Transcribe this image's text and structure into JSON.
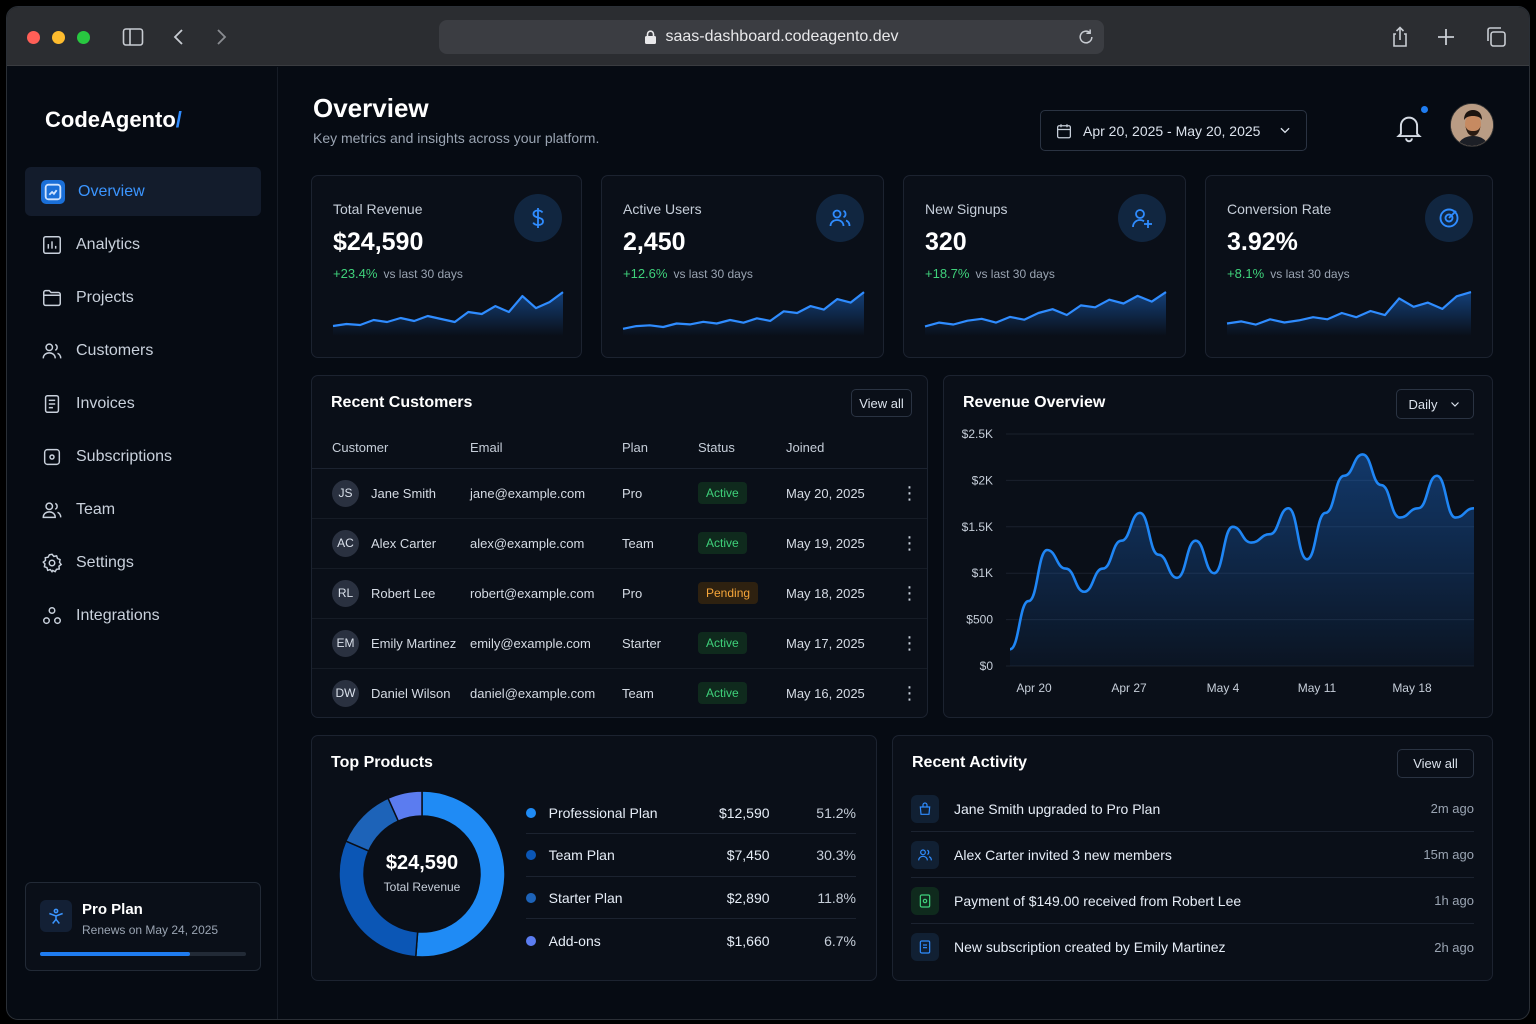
{
  "browser": {
    "url": "saas-dashboard.codeagento.dev"
  },
  "sidebar": {
    "logo": "CodeAgento",
    "logo_slash": "/",
    "items": [
      {
        "label": "Overview",
        "icon": "dashboard-icon",
        "active": true
      },
      {
        "label": "Analytics",
        "icon": "bar-chart-icon"
      },
      {
        "label": "Projects",
        "icon": "folder-icon"
      },
      {
        "label": "Customers",
        "icon": "users-icon"
      },
      {
        "label": "Invoices",
        "icon": "file-text-icon"
      },
      {
        "label": "Subscriptions",
        "icon": "subscription-icon"
      },
      {
        "label": "Team",
        "icon": "team-icon"
      },
      {
        "label": "Settings",
        "icon": "gear-icon"
      },
      {
        "label": "Integrations",
        "icon": "integrations-icon"
      }
    ],
    "plan": {
      "title": "Pro Plan",
      "subtitle": "Renews on May 24, 2025",
      "progress": 0.73
    }
  },
  "header": {
    "title": "Overview",
    "subtitle": "Key metrics and insights across your platform.",
    "date_range": "Apr 20, 2025 - May 20, 2025"
  },
  "kpis": [
    {
      "label": "Total Revenue",
      "value": "$24,590",
      "delta": "+23.4%",
      "delta_note": "vs last 30 days",
      "icon": "dollar-icon"
    },
    {
      "label": "Active Users",
      "value": "2,450",
      "delta": "+12.6%",
      "delta_note": "vs last 30 days",
      "icon": "users-icon"
    },
    {
      "label": "New Signups",
      "value": "320",
      "delta": "+18.7%",
      "delta_note": "vs last 30 days",
      "icon": "user-plus-icon"
    },
    {
      "label": "Conversion Rate",
      "value": "3.92%",
      "delta": "+8.1%",
      "delta_note": "vs last 30 days",
      "icon": "target-icon"
    }
  ],
  "customers": {
    "title": "Recent Customers",
    "view_all": "View all",
    "columns": [
      "Customer",
      "Email",
      "Plan",
      "Status",
      "Joined"
    ],
    "rows": [
      {
        "initials": "JS",
        "name": "Jane Smith",
        "email": "jane@example.com",
        "plan": "Pro",
        "status": "Active",
        "joined": "May 20, 2025"
      },
      {
        "initials": "AC",
        "name": "Alex Carter",
        "email": "alex@example.com",
        "plan": "Team",
        "status": "Active",
        "joined": "May 19, 2025"
      },
      {
        "initials": "RL",
        "name": "Robert Lee",
        "email": "robert@example.com",
        "plan": "Pro",
        "status": "Pending",
        "joined": "May 18, 2025"
      },
      {
        "initials": "EM",
        "name": "Emily Martinez",
        "email": "emily@example.com",
        "plan": "Starter",
        "status": "Active",
        "joined": "May 17, 2025"
      },
      {
        "initials": "DW",
        "name": "Daniel Wilson",
        "email": "daniel@example.com",
        "plan": "Team",
        "status": "Active",
        "joined": "May 16, 2025"
      }
    ]
  },
  "revenue": {
    "title": "Revenue Overview",
    "period": "Daily",
    "chart_data": {
      "type": "area",
      "y_ticks": [
        "$2.5K",
        "$2K",
        "$1.5K",
        "$1K",
        "$500",
        "$0"
      ],
      "x_ticks": [
        "Apr 20",
        "Apr 27",
        "May 4",
        "May 11",
        "May 18"
      ],
      "ylim": [
        0,
        2500
      ],
      "values": [
        180,
        700,
        1250,
        1050,
        800,
        1050,
        1350,
        1650,
        1200,
        950,
        1350,
        1000,
        1500,
        1330,
        1420,
        1700,
        1150,
        1650,
        2050,
        2280,
        1950,
        1600,
        1700,
        2050,
        1600,
        1700
      ]
    }
  },
  "products": {
    "title": "Top Products",
    "total_value": "$24,590",
    "total_label": "Total Revenue",
    "chart_data": {
      "type": "pie",
      "items": [
        {
          "name": "Professional Plan",
          "value": "$12,590",
          "pct": "51.2%",
          "share": 51.2,
          "color": "#1f8bf5"
        },
        {
          "name": "Team Plan",
          "value": "$7,450",
          "pct": "30.3%",
          "share": 30.3,
          "color": "#0b56b5"
        },
        {
          "name": "Starter Plan",
          "value": "$2,890",
          "pct": "11.8%",
          "share": 11.8,
          "color": "#1d63b8"
        },
        {
          "name": "Add-ons",
          "value": "$1,660",
          "pct": "6.7%",
          "share": 6.7,
          "color": "#5b7cf0"
        }
      ]
    }
  },
  "activity": {
    "title": "Recent Activity",
    "view_all": "View all",
    "items": [
      {
        "text": "Jane Smith upgraded to Pro Plan",
        "time": "2m ago",
        "icon": "upgrade-icon"
      },
      {
        "text": "Alex Carter invited 3 new members",
        "time": "15m ago",
        "icon": "users-icon"
      },
      {
        "text": "Payment of $149.00 received from Robert Lee",
        "time": "1h ago",
        "icon": "payment-icon"
      },
      {
        "text": "New subscription created by Emily Martinez",
        "time": "2h ago",
        "icon": "subscription-icon"
      }
    ]
  },
  "kpi_sparklines": [
    [
      8,
      10,
      9,
      14,
      12,
      16,
      13,
      18,
      15,
      12,
      22,
      20,
      28,
      22,
      38,
      26,
      32,
      42
    ],
    [
      6,
      9,
      10,
      8,
      12,
      11,
      14,
      12,
      16,
      13,
      18,
      15,
      26,
      24,
      32,
      28,
      40,
      36,
      48
    ],
    [
      8,
      12,
      10,
      14,
      16,
      12,
      18,
      15,
      22,
      26,
      20,
      30,
      28,
      36,
      32,
      40,
      34,
      44
    ],
    [
      10,
      12,
      9,
      14,
      11,
      13,
      16,
      14,
      20,
      16,
      22,
      18,
      34,
      26,
      30,
      24,
      36,
      40
    ]
  ]
}
